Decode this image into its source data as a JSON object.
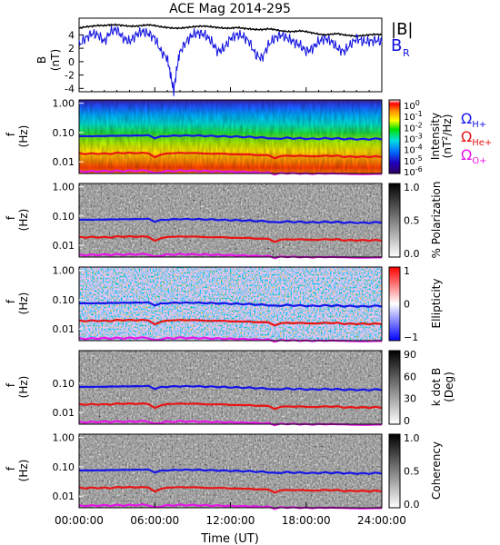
{
  "chart_data": [
    {
      "type": "line",
      "title": "ACE Mag 2014-295",
      "ylabel": "B",
      "yunit": "(nT)",
      "ylim": [
        -4.5,
        6.5
      ],
      "yticks": [
        -4,
        -2,
        0,
        2,
        4
      ],
      "xlim": [
        0,
        24
      ],
      "series": [
        {
          "name": "|B|",
          "color": "#000000",
          "x": [
            0,
            0.5,
            1,
            1.5,
            2,
            2.5,
            3,
            3.5,
            4,
            4.5,
            5,
            5.5,
            6,
            6.5,
            7,
            7.5,
            8,
            8.5,
            9,
            9.5,
            10,
            10.5,
            11,
            11.5,
            12,
            12.5,
            13,
            13.5,
            14,
            14.5,
            15,
            15.5,
            16,
            16.5,
            17,
            17.5,
            18,
            18.5,
            19,
            19.5,
            20,
            20.5,
            21,
            21.5,
            22,
            22.5,
            23,
            23.5,
            24
          ],
          "y": [
            5.0,
            5.2,
            5.3,
            5.4,
            5.4,
            5.5,
            5.5,
            5.4,
            5.3,
            5.3,
            5.4,
            5.5,
            5.4,
            5.2,
            5.1,
            5.0,
            5.0,
            5.1,
            5.2,
            5.3,
            5.3,
            5.2,
            5.1,
            5.0,
            5.0,
            5.1,
            5.0,
            4.9,
            4.8,
            4.8,
            4.9,
            4.8,
            4.6,
            4.5,
            4.5,
            4.6,
            4.5,
            4.3,
            4.1,
            4.0,
            4.1,
            4.2,
            4.0,
            3.9,
            3.8,
            3.9,
            4.0,
            4.1,
            4.0
          ]
        },
        {
          "name": "B_R",
          "color": "#1010e0",
          "x": [
            0,
            0.5,
            1,
            1.5,
            2,
            2.5,
            3,
            3.5,
            4,
            4.5,
            5,
            5.5,
            6,
            6.5,
            7,
            7.25,
            7.5,
            7.75,
            8,
            8.5,
            9,
            9.5,
            10,
            10.5,
            11,
            11.5,
            12,
            12.5,
            13,
            13.5,
            14,
            14.5,
            15,
            15.5,
            16,
            16.5,
            17,
            17.5,
            18,
            18.5,
            19,
            19.5,
            20,
            20.5,
            21,
            21.5,
            22,
            22.5,
            23,
            23.5,
            24
          ],
          "y": [
            2.5,
            3.5,
            4.2,
            4.0,
            3.0,
            4.5,
            4.8,
            3.5,
            3.0,
            4.0,
            4.5,
            4.2,
            3.5,
            1.5,
            0.5,
            -2.0,
            -4.4,
            -1.0,
            1.5,
            3.0,
            4.0,
            4.3,
            4.0,
            3.0,
            1.5,
            2.0,
            3.5,
            4.0,
            3.8,
            3.0,
            1.0,
            0.5,
            2.5,
            3.5,
            4.0,
            3.5,
            3.0,
            2.5,
            1.5,
            2.0,
            3.0,
            3.5,
            3.0,
            2.0,
            1.5,
            2.5,
            3.5,
            3.0,
            3.0,
            3.2,
            3.0
          ]
        }
      ],
      "legend": [
        "|B|",
        "B",
        "R"
      ]
    },
    {
      "type": "heatmap",
      "ylabel": "f",
      "yunit": "(Hz)",
      "yscale": "log",
      "ylim": [
        0.004,
        1.3
      ],
      "yticks": [
        "1.00",
        "0.10",
        "0.01"
      ],
      "colorbar": {
        "label": "Intensity",
        "unit": "(nT",
        "unit_sup": "2",
        "unit_end": "/Hz)",
        "base": "10",
        "exponents": [
          "0",
          "-1",
          "-2",
          "-3",
          "-4",
          "-5",
          "-6"
        ],
        "colors": [
          "#ffffff",
          "#ff0000",
          "#ff8c00",
          "#ffff00",
          "#00e000",
          "#00e0e0",
          "#0060ff",
          "#2000a0",
          "#300060"
        ]
      },
      "gyro_lines": [
        {
          "name": "Ω",
          "sub": "H+",
          "color": "#1515e8",
          "values": [
            0.075,
            0.075,
            0.075,
            0.076,
            0.076,
            0.077,
            0.078,
            0.078,
            0.079,
            0.079,
            0.08,
            0.08,
            0.065,
            0.074,
            0.076,
            0.078,
            0.079,
            0.079,
            0.079,
            0.078,
            0.077,
            0.076,
            0.075,
            0.074,
            0.073,
            0.072,
            0.071,
            0.07,
            0.069,
            0.067,
            0.066,
            0.06,
            0.064,
            0.065,
            0.064,
            0.063,
            0.062,
            0.061,
            0.062,
            0.063,
            0.063,
            0.062,
            0.061,
            0.06,
            0.06,
            0.059,
            0.06,
            0.061,
            0.061
          ]
        },
        {
          "name": "Ω",
          "sub": "He+",
          "color": "#e81515",
          "values": [
            0.019,
            0.019,
            0.019,
            0.019,
            0.019,
            0.019,
            0.02,
            0.02,
            0.02,
            0.02,
            0.02,
            0.02,
            0.014,
            0.018,
            0.019,
            0.02,
            0.02,
            0.02,
            0.02,
            0.02,
            0.019,
            0.019,
            0.019,
            0.019,
            0.018,
            0.018,
            0.018,
            0.018,
            0.017,
            0.017,
            0.017,
            0.013,
            0.016,
            0.016,
            0.016,
            0.016,
            0.016,
            0.015,
            0.016,
            0.016,
            0.016,
            0.016,
            0.015,
            0.015,
            0.015,
            0.015,
            0.015,
            0.015,
            0.015
          ]
        },
        {
          "name": "Ω",
          "sub": "O+",
          "color": "#e815e8",
          "values": [
            0.0047,
            0.0047,
            0.0047,
            0.0048,
            0.0048,
            0.0048,
            0.0049,
            0.0049,
            0.0049,
            0.005,
            0.005,
            0.005,
            0.004,
            0.0046,
            0.0048,
            0.0049,
            0.005,
            0.005,
            0.0049,
            0.0049,
            0.0048,
            0.0048,
            0.0047,
            0.0047,
            0.0046,
            0.0046,
            0.0045,
            0.0045,
            0.0044,
            0.0043,
            0.0043,
            0.0038,
            0.0041,
            0.0041,
            0.0041,
            0.004,
            0.004,
            0.0039,
            0.004,
            0.004,
            0.004,
            0.004,
            0.0039,
            0.0039,
            0.0038,
            0.0038,
            0.0038,
            0.0039,
            0.0039
          ]
        }
      ]
    },
    {
      "type": "heatmap",
      "ylabel": "f",
      "yunit": "(Hz)",
      "yscale": "log",
      "ylim": [
        0.004,
        1.3
      ],
      "yticks": [
        "1.00",
        "0.10",
        "0.01"
      ],
      "colorbar": {
        "label": "% Polarization",
        "ticks": [
          "1.0",
          "0.5",
          "0.0"
        ],
        "colors": [
          "#000000",
          "#ffffff"
        ]
      }
    },
    {
      "type": "heatmap",
      "ylabel": "f",
      "yunit": "(Hz)",
      "yscale": "log",
      "ylim": [
        0.004,
        1.3
      ],
      "yticks": [
        "1.00",
        "0.10",
        "0.01"
      ],
      "colorbar": {
        "label": "Ellipticity",
        "ticks": [
          "1",
          "0",
          "−1"
        ],
        "colors": [
          "#ff0000",
          "#ffffff",
          "#0000ff"
        ]
      }
    },
    {
      "type": "heatmap",
      "ylabel": "f",
      "yunit": "(Hz)",
      "yscale": "log",
      "ylim": [
        0.004,
        1.3
      ],
      "yticks": [
        "0.10",
        "0.01"
      ],
      "colorbar": {
        "label": "k dot B",
        "unit": "(Deg)",
        "ticks": [
          "90",
          "60",
          "30",
          "0"
        ],
        "colors": [
          "#000000",
          "#ffffff"
        ]
      }
    },
    {
      "type": "heatmap",
      "ylabel": "f",
      "yunit": "(Hz)",
      "yscale": "log",
      "ylim": [
        0.004,
        1.3
      ],
      "yticks": [
        "1.00",
        "0.10",
        "0.01"
      ],
      "colorbar": {
        "label": "Coherency",
        "ticks": [
          "1.0",
          "0.5",
          "0.0"
        ],
        "colors": [
          "#000000",
          "#ffffff"
        ]
      },
      "xticks": [
        "00:00:00",
        "06:00:00",
        "12:00:00",
        "18:00:00",
        "24:00:00"
      ],
      "xlabel": "Time (UT)"
    }
  ]
}
